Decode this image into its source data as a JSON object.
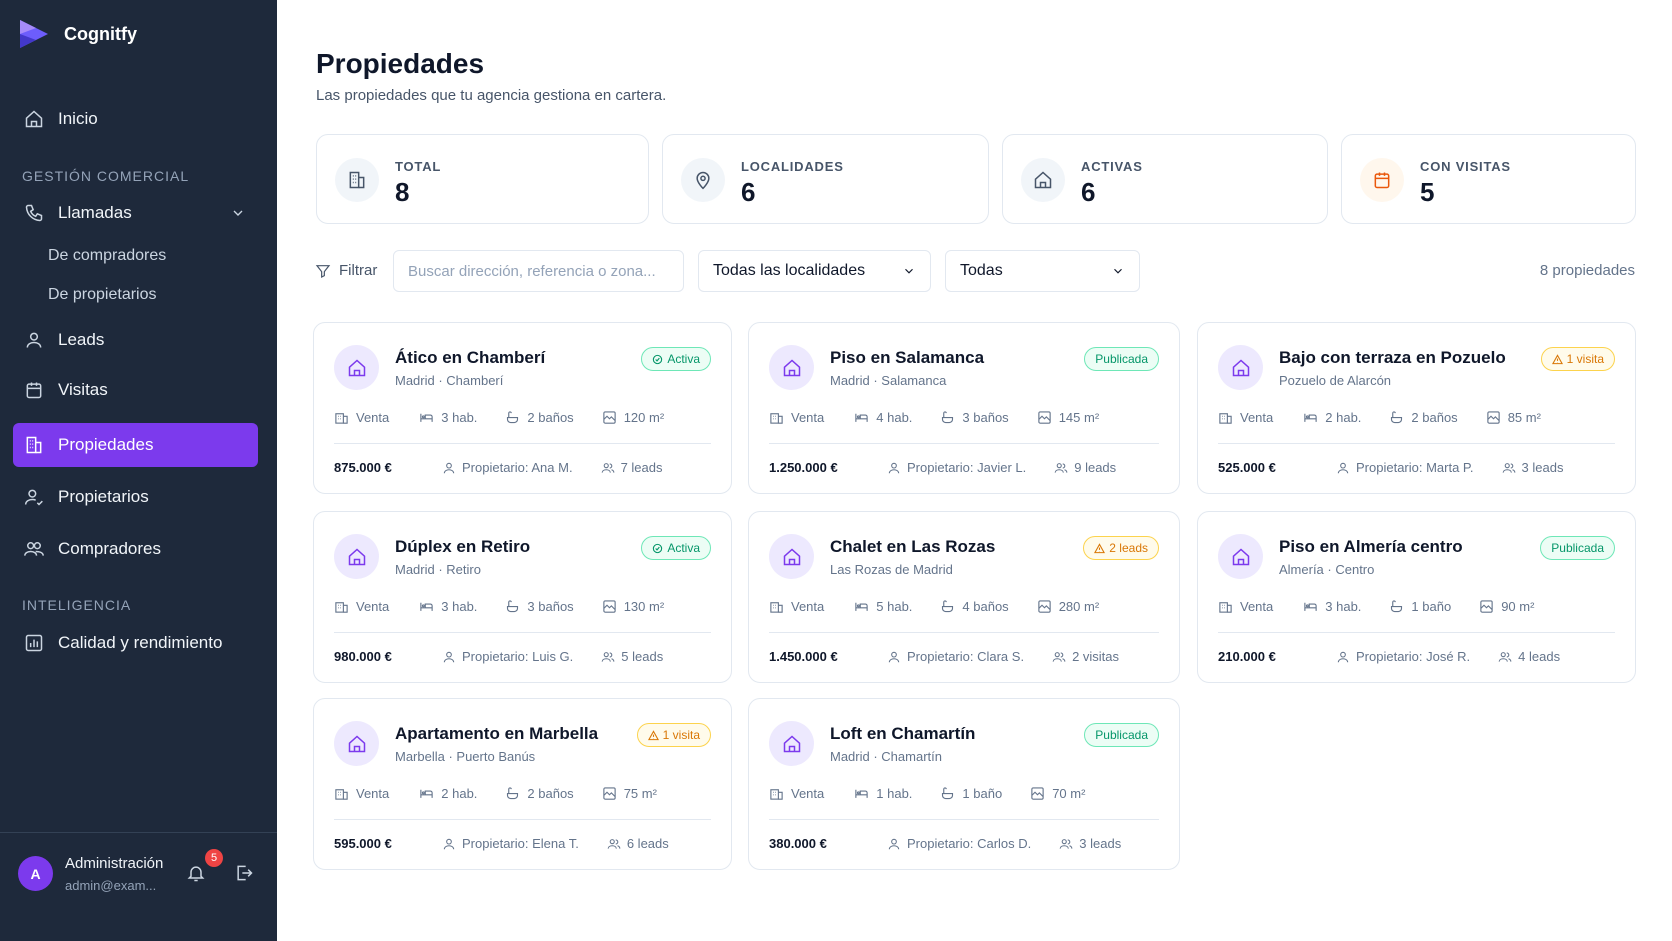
{
  "app": {
    "name": "Cognitfy"
  },
  "sidebar": {
    "home": "Inicio",
    "section_commercial": "GESTIÓN COMERCIAL",
    "calls": "Llamadas",
    "calls_buyers": "De compradores",
    "calls_owners": "De propietarios",
    "leads": "Leads",
    "visits": "Visitas",
    "properties": "Propiedades",
    "owners": "Propietarios",
    "buyers": "Compradores",
    "section_intel": "INTELIGENCIA",
    "quality": "Calidad y rendimiento",
    "user": {
      "initial": "A",
      "name": "Administración",
      "email": "admin@exam..."
    },
    "notifications": "5"
  },
  "page": {
    "title": "Propiedades",
    "subtitle": "Las propiedades que tu agencia gestiona en cartera."
  },
  "stats": {
    "total": {
      "label": "TOTAL",
      "value": "8"
    },
    "localities": {
      "label": "LOCALIDADES",
      "value": "6"
    },
    "active": {
      "label": "ACTIVAS",
      "value": "6"
    },
    "visits": {
      "label": "CON VISITAS",
      "value": "5"
    }
  },
  "filters": {
    "label": "Filtrar",
    "search_placeholder": "Buscar dirección, referencia o zona...",
    "locality": "Todas las localidades",
    "status": "Todas",
    "count": "8 propiedades"
  },
  "cards": [
    {
      "title": "Ático en Chamberí",
      "location": "Madrid · Chamberí",
      "badge": "Activa",
      "type": "Venta",
      "rooms": "3 hab.",
      "baths": "2 baños",
      "area": "120 m²",
      "price": "875.000 €",
      "owner": "Propietario: Ana M.",
      "stat": "7 leads"
    },
    {
      "title": "Piso en Salamanca",
      "location": "Madrid · Salamanca",
      "badge": "Publicada",
      "type": "Venta",
      "rooms": "4 hab.",
      "baths": "3 baños",
      "area": "145 m²",
      "price": "1.250.000 €",
      "owner": "Propietario: Javier L.",
      "stat": "9 leads"
    },
    {
      "title": "Bajo con terraza en Pozuelo",
      "location": "Pozuelo de Alarcón",
      "badge": "1 visita",
      "type": "Venta",
      "rooms": "2 hab.",
      "baths": "2 baños",
      "area": "85 m²",
      "price": "525.000 €",
      "owner": "Propietario: Marta P.",
      "stat": "3 leads"
    },
    {
      "title": "Dúplex en Retiro",
      "location": "Madrid · Retiro",
      "badge": "Activa",
      "type": "Venta",
      "rooms": "3 hab.",
      "baths": "3 baños",
      "area": "130 m²",
      "price": "980.000 €",
      "owner": "Propietario: Luis G.",
      "stat": "5 leads"
    },
    {
      "title": "Chalet en Las Rozas",
      "location": "Las Rozas de Madrid",
      "badge": "2 leads",
      "type": "Venta",
      "rooms": "5 hab.",
      "baths": "4 baños",
      "area": "280 m²",
      "price": "1.450.000 €",
      "owner": "Propietario: Clara S.",
      "stat": "2 visitas"
    },
    {
      "title": "Piso en Almería centro",
      "location": "Almería · Centro",
      "badge": "Publicada",
      "type": "Venta",
      "rooms": "3 hab.",
      "baths": "1 baño",
      "area": "90 m²",
      "price": "210.000 €",
      "owner": "Propietario: José R.",
      "stat": "4 leads"
    },
    {
      "title": "Apartamento en Marbella",
      "location": "Marbella · Puerto Banús",
      "badge": "1 visita",
      "type": "Venta",
      "rooms": "2 hab.",
      "baths": "2 baños",
      "area": "75 m²",
      "price": "595.000 €",
      "owner": "Propietario: Elena T.",
      "stat": "6 leads"
    },
    {
      "title": "Loft en Chamartín",
      "location": "Madrid · Chamartín",
      "badge": "Publicada",
      "type": "Venta",
      "rooms": "1 hab.",
      "baths": "1 baño",
      "area": "70 m²",
      "price": "380.000 €",
      "owner": "Propietario: Carlos D.",
      "stat": "3 leads"
    }
  ]
}
